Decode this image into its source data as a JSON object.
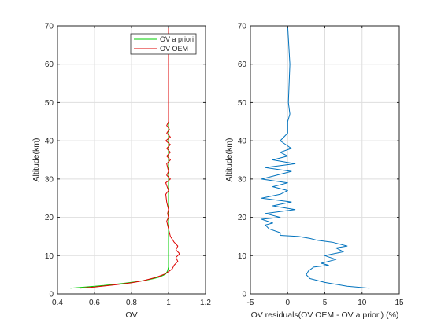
{
  "chart_data": [
    {
      "type": "line",
      "title": "",
      "xlabel": "OV",
      "ylabel": "Altitude(km)",
      "xlim": [
        0.4,
        1.2
      ],
      "ylim": [
        0,
        70
      ],
      "xticks": [
        0.4,
        0.6,
        0.8,
        1,
        1.2
      ],
      "xtick_labels": [
        "0.4",
        "0.6",
        "0.8",
        "1",
        "1.2"
      ],
      "yticks": [
        0,
        10,
        20,
        30,
        40,
        50,
        60,
        70
      ],
      "ytick_labels": [
        "0",
        "10",
        "20",
        "30",
        "40",
        "50",
        "60",
        "70"
      ],
      "grid": true,
      "legend": "top-right",
      "series": [
        {
          "name": "OV a priori",
          "color": "#00cc00",
          "x": [
            0.47,
            0.55,
            0.65,
            0.75,
            0.83,
            0.88,
            0.92,
            0.95,
            0.97,
            0.985,
            0.995,
            1.0,
            1.0,
            1.0,
            1.0
          ],
          "y": [
            1.5,
            1.8,
            2.2,
            2.7,
            3.2,
            3.6,
            4.0,
            4.4,
            4.8,
            5.2,
            6.0,
            7.0,
            15.0,
            47.0,
            70.0
          ]
        },
        {
          "name": "OV OEM",
          "color": "#dd0000",
          "x": [
            0.52,
            0.6,
            0.7,
            0.8,
            0.86,
            0.9,
            0.93,
            0.96,
            0.98,
            1.0,
            1.02,
            1.03,
            1.05,
            1.04,
            1.06,
            1.04,
            1.05,
            1.03,
            1.02,
            1.01,
            1.0,
            0.99,
            1.0,
            0.995,
            1.0,
            0.99,
            0.985,
            1.0,
            0.985,
            1.01,
            0.99,
            1.0,
            0.99,
            1.01,
            0.99,
            1.01,
            0.99,
            1.01,
            0.985,
            1.01,
            0.99,
            1.005,
            0.99,
            1.0,
            1.0,
            1.0,
            1.0
          ],
          "y": [
            1.5,
            1.8,
            2.3,
            2.9,
            3.4,
            3.9,
            4.3,
            4.8,
            5.2,
            5.8,
            6.5,
            7.5,
            8.5,
            9.5,
            10.5,
            11.5,
            12.5,
            13.5,
            14.3,
            15.0,
            17.0,
            19.0,
            20.0,
            21.0,
            22.0,
            24.0,
            26.0,
            27.0,
            29.0,
            30.0,
            31.0,
            32.0,
            34.0,
            35.0,
            36.0,
            37.0,
            38.0,
            39.0,
            40.0,
            41.0,
            42.0,
            43.0,
            44.0,
            45.0,
            47.0,
            50.0,
            70.0
          ]
        }
      ]
    },
    {
      "type": "line",
      "title": "",
      "xlabel": "OV residuals(OV OEM - OV a priori) (%)",
      "ylabel": "Altitude(km)",
      "xlim": [
        -5,
        15
      ],
      "ylim": [
        0,
        70
      ],
      "xticks": [
        -5,
        0,
        5,
        10,
        15
      ],
      "xtick_labels": [
        "-5",
        "0",
        "5",
        "10",
        "15"
      ],
      "yticks": [
        0,
        10,
        20,
        30,
        40,
        50,
        60,
        70
      ],
      "ytick_labels": [
        "0",
        "10",
        "20",
        "30",
        "40",
        "50",
        "60",
        "70"
      ],
      "grid": true,
      "legend": "none",
      "series": [
        {
          "name": "",
          "color": "#0072bd",
          "x": [
            11,
            8,
            5,
            3,
            2.5,
            2.8,
            3.5,
            5.5,
            4.5,
            6.5,
            5,
            7.5,
            6.5,
            8,
            7,
            6,
            4,
            3,
            1.5,
            -1,
            -1,
            -2.5,
            -3,
            -2,
            -3.5,
            -1,
            -3,
            1,
            -2,
            0.5,
            -3.5,
            -1,
            0,
            -2,
            0,
            -3.5,
            -1.5,
            0.5,
            -3,
            1,
            -2,
            0,
            -1,
            0.5,
            -1,
            0,
            0,
            0.3,
            0.1,
            0.3,
            0
          ],
          "y": [
            1.5,
            2,
            3,
            4,
            5,
            6,
            7,
            7.5,
            8,
            9,
            10,
            11,
            12,
            12.5,
            13,
            13.5,
            14,
            14.5,
            15,
            15.3,
            16,
            17,
            18,
            18.5,
            19.5,
            20,
            21,
            22,
            23,
            24,
            25,
            26,
            27,
            28,
            29,
            30,
            31,
            32,
            33,
            34,
            35,
            36,
            37,
            38,
            40,
            42,
            45,
            47,
            50,
            60,
            70
          ]
        }
      ]
    }
  ]
}
